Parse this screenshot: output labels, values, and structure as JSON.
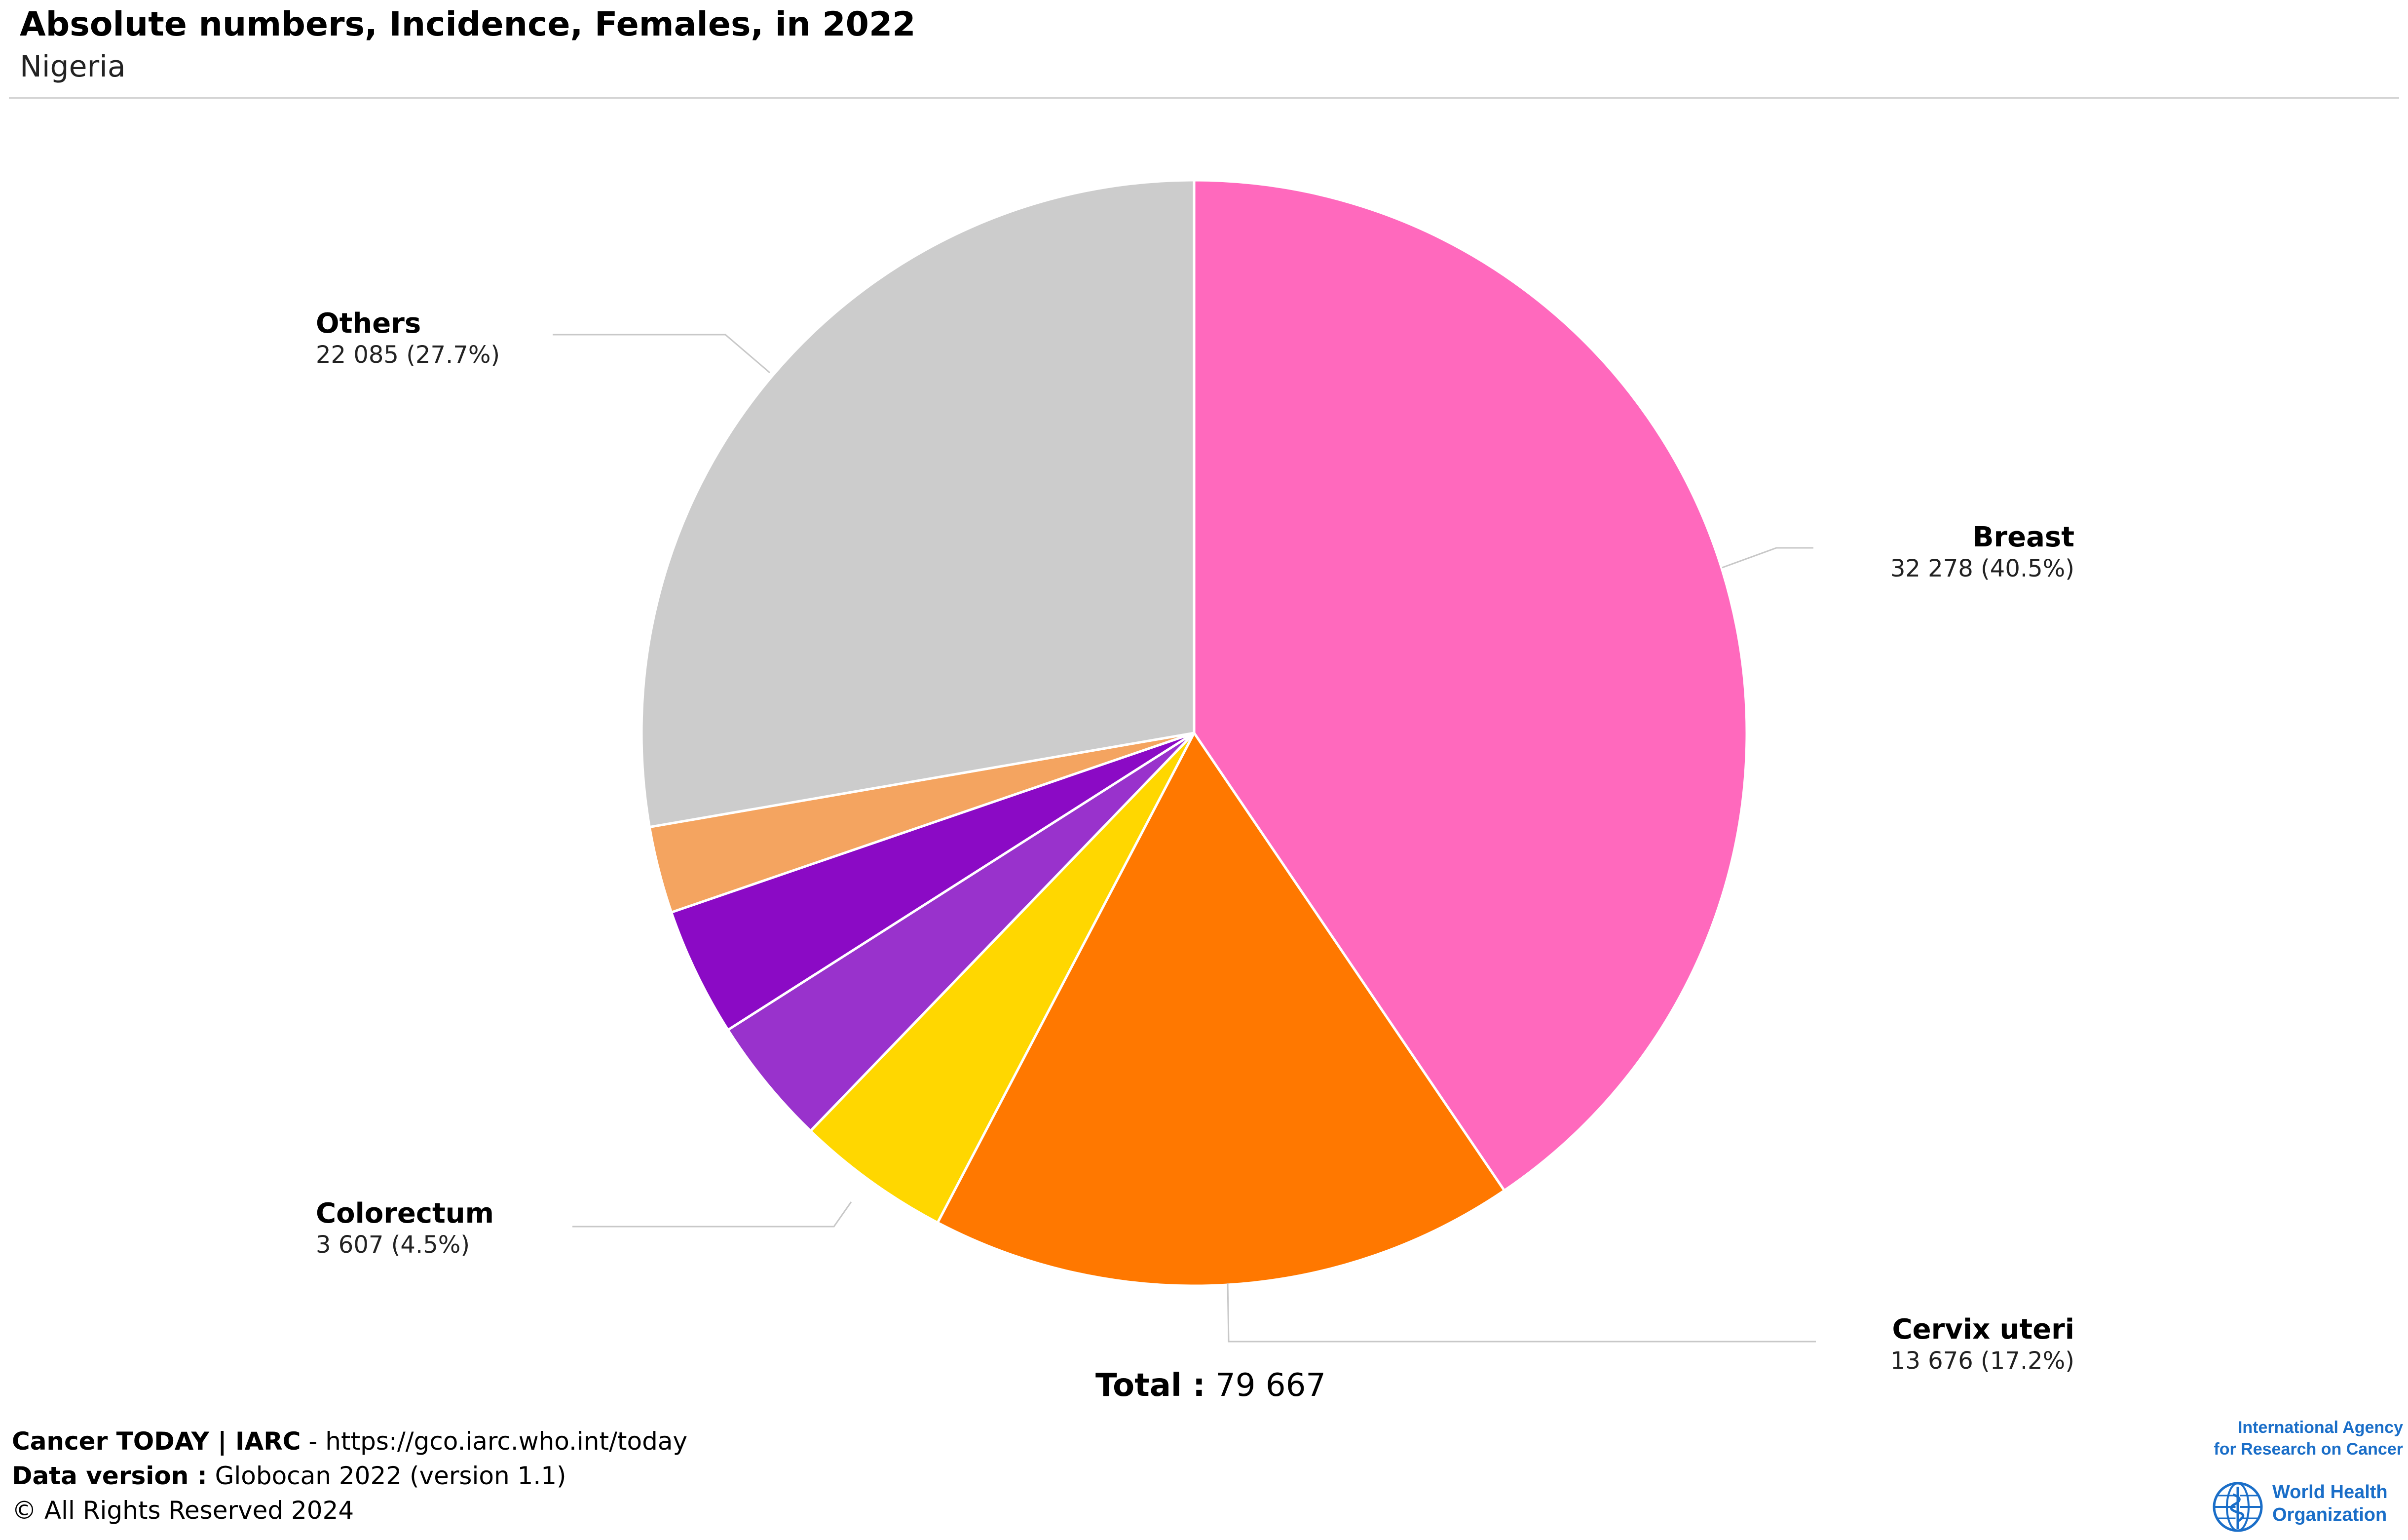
{
  "header": {
    "title": "Absolute numbers, Incidence, Females, in 2022",
    "subtitle": "Nigeria"
  },
  "chart_data": {
    "type": "pie",
    "title": "Absolute numbers, Incidence, Females, in 2022",
    "subtitle": "Nigeria",
    "slices": [
      {
        "name": "Breast",
        "value": 32278,
        "percent": 40.5,
        "value_label": "32 278 (40.5%)",
        "color": "#ff69bd",
        "labeled": true
      },
      {
        "name": "Cervix uteri",
        "value": 13676,
        "percent": 17.2,
        "value_label": "13 676 (17.2%)",
        "color": "#ff7800",
        "labeled": true
      },
      {
        "name": "Colorectum",
        "value": 3607,
        "percent": 4.5,
        "value_label": "3 607 (4.5%)",
        "color": "#ffd700",
        "labeled": true
      },
      {
        "name": "",
        "value": 3000,
        "percent": 3.8,
        "value_label": "",
        "color": "#9932cc",
        "labeled": false
      },
      {
        "name": "",
        "value": 3000,
        "percent": 3.8,
        "value_label": "",
        "color": "#8b0ac5",
        "labeled": false
      },
      {
        "name": "",
        "value": 2021,
        "percent": 2.5,
        "value_label": "",
        "color": "#f4a460",
        "labeled": false
      },
      {
        "name": "Others",
        "value": 22085,
        "percent": 27.7,
        "value_label": "22 085 (27.7%)",
        "color": "#cccccc",
        "labeled": true
      }
    ],
    "total_label": "Total :",
    "total_value": "79 667"
  },
  "footer": {
    "line1_bold": "Cancer TODAY | IARC",
    "line1_rest": " - https://gco.iarc.who.int/today",
    "line2_bold": "Data version :",
    "line2_rest": " Globocan 2022 (version 1.1)",
    "line3": "© All Rights Reserved 2024"
  },
  "logos": {
    "iarc_line1": "International Agency",
    "iarc_line2": "for Research on Cancer",
    "who_line1": "World Health",
    "who_line2": "Organization"
  }
}
